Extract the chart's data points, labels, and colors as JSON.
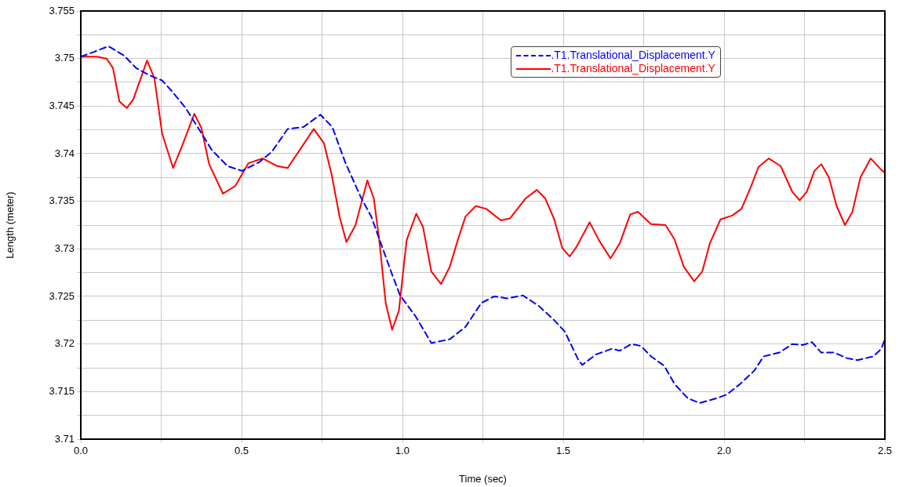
{
  "chart_data": {
    "type": "line",
    "xlabel": "Time (sec)",
    "ylabel": "Length (meter)",
    "xlim": [
      0,
      2.5
    ],
    "ylim": [
      3.71,
      3.755
    ],
    "xticks": [
      {
        "value": 0,
        "label": "0.0"
      },
      {
        "value": 0.25,
        "label": null
      },
      {
        "value": 0.5,
        "label": "0.5"
      },
      {
        "value": 0.75,
        "label": null
      },
      {
        "value": 1,
        "label": "1.0"
      },
      {
        "value": 1.25,
        "label": null
      },
      {
        "value": 1.5,
        "label": "1.5"
      },
      {
        "value": 1.75,
        "label": null
      },
      {
        "value": 2,
        "label": "2.0"
      },
      {
        "value": 2.25,
        "label": null
      },
      {
        "value": 2.5,
        "label": "2.5"
      }
    ],
    "yticks": [
      3.71,
      {
        "value": 3.7125,
        "label": null
      },
      3.715,
      {
        "value": 3.7175,
        "label": null
      },
      3.72,
      {
        "value": 3.7225,
        "label": null
      },
      3.725,
      {
        "value": 3.7275,
        "label": null
      },
      3.73,
      {
        "value": 3.7325,
        "label": null
      },
      3.735,
      {
        "value": 3.7375,
        "label": null
      },
      3.74,
      {
        "value": 3.7425,
        "label": null
      },
      3.745,
      {
        "value": 3.7475,
        "label": null
      },
      3.75,
      {
        "value": 3.7525,
        "label": null
      },
      3.755
    ],
    "grid": true,
    "legend": "top right",
    "marker": "none",
    "series": [
      {
        "name": ".T1.Translational_Displacement.Y",
        "color": "#0000ff",
        "line_style": "dashed",
        "x": [
          0,
          0.041,
          0.086,
          0.135,
          0.172,
          0.216,
          0.253,
          0.285,
          0.326,
          0.367,
          0.407,
          0.456,
          0.501,
          0.554,
          0.594,
          0.643,
          0.692,
          0.745,
          0.782,
          0.822,
          0.871,
          0.903,
          0.936,
          0.968,
          0.993,
          1.041,
          1.09,
          1.147,
          1.196,
          1.245,
          1.285,
          1.326,
          1.375,
          1.424,
          1.472,
          1.505,
          1.546,
          1.559,
          1.602,
          1.651,
          1.676,
          1.712,
          1.741,
          1.773,
          1.814,
          1.846,
          1.887,
          1.924,
          1.977,
          2.009,
          2.05,
          2.094,
          2.123,
          2.172,
          2.212,
          2.245,
          2.273,
          2.302,
          2.342,
          2.383,
          2.415,
          2.464,
          2.489,
          2.5
        ],
        "values": [
          3.7502,
          3.7507,
          3.7513,
          3.7503,
          3.749,
          3.7482,
          3.7477,
          3.7465,
          3.7448,
          3.7426,
          3.7404,
          3.7387,
          3.7382,
          3.7391,
          3.7402,
          3.7426,
          3.7428,
          3.7441,
          3.7428,
          3.7391,
          3.7354,
          3.7334,
          3.7303,
          3.7273,
          3.7251,
          3.7229,
          3.7201,
          3.7205,
          3.7218,
          3.7243,
          3.725,
          3.7248,
          3.7251,
          3.724,
          3.7225,
          3.7213,
          3.7184,
          3.7178,
          3.7189,
          3.7195,
          3.7193,
          3.72,
          3.7198,
          3.7187,
          3.7177,
          3.7158,
          3.7143,
          3.7138,
          3.7143,
          3.7147,
          3.7158,
          3.7172,
          3.7187,
          3.7191,
          3.72,
          3.7199,
          3.7202,
          3.7191,
          3.7191,
          3.7185,
          3.7183,
          3.7187,
          3.7195,
          3.7205
        ]
      },
      {
        "name": ".T1.Translational_Displacement.Y",
        "color": "#ff0000",
        "line_style": "solid",
        "x": [
          0,
          0.05,
          0.08,
          0.1,
          0.12,
          0.143,
          0.163,
          0.206,
          0.229,
          0.253,
          0.287,
          0.317,
          0.353,
          0.375,
          0.399,
          0.442,
          0.48,
          0.521,
          0.566,
          0.611,
          0.643,
          0.683,
          0.724,
          0.756,
          0.78,
          0.805,
          0.826,
          0.854,
          0.891,
          0.911,
          0.928,
          0.948,
          0.968,
          0.989,
          1.013,
          1.043,
          1.064,
          1.09,
          1.12,
          1.147,
          1.172,
          1.196,
          1.228,
          1.261,
          1.306,
          1.334,
          1.383,
          1.418,
          1.444,
          1.472,
          1.497,
          1.52,
          1.541,
          1.582,
          1.611,
          1.647,
          1.676,
          1.708,
          1.732,
          1.773,
          1.818,
          1.846,
          1.875,
          1.907,
          1.932,
          1.956,
          1.989,
          2.025,
          2.054,
          2.082,
          2.107,
          2.139,
          2.176,
          2.212,
          2.235,
          2.257,
          2.281,
          2.302,
          2.326,
          2.35,
          2.376,
          2.399,
          2.424,
          2.456,
          2.489,
          2.5
        ],
        "values": [
          3.7502,
          3.7502,
          3.75,
          3.749,
          3.7455,
          3.7448,
          3.7457,
          3.7498,
          3.7479,
          3.7421,
          3.7385,
          3.741,
          3.7442,
          3.7427,
          3.7389,
          3.7358,
          3.7366,
          3.739,
          3.7395,
          3.7387,
          3.7385,
          3.7405,
          3.7426,
          3.7411,
          3.7378,
          3.7333,
          3.7307,
          3.7325,
          3.7372,
          3.7353,
          3.7309,
          3.7243,
          3.7215,
          3.7235,
          3.7309,
          3.7337,
          3.7323,
          3.7276,
          3.7263,
          3.7281,
          3.7309,
          3.7334,
          3.7345,
          3.7342,
          3.733,
          3.7332,
          3.7353,
          3.7362,
          3.7353,
          3.7331,
          3.7301,
          3.7292,
          3.7302,
          3.7328,
          3.7309,
          3.729,
          3.7306,
          3.7336,
          3.7339,
          3.7326,
          3.7325,
          3.731,
          3.7281,
          3.7266,
          3.7276,
          3.7306,
          3.7331,
          3.7335,
          3.7342,
          3.7364,
          3.7386,
          3.7395,
          3.7387,
          3.736,
          3.7351,
          3.736,
          3.7382,
          3.7389,
          3.7375,
          3.7345,
          3.7325,
          3.7339,
          3.7375,
          3.7395,
          3.7383,
          3.738
        ]
      }
    ]
  }
}
